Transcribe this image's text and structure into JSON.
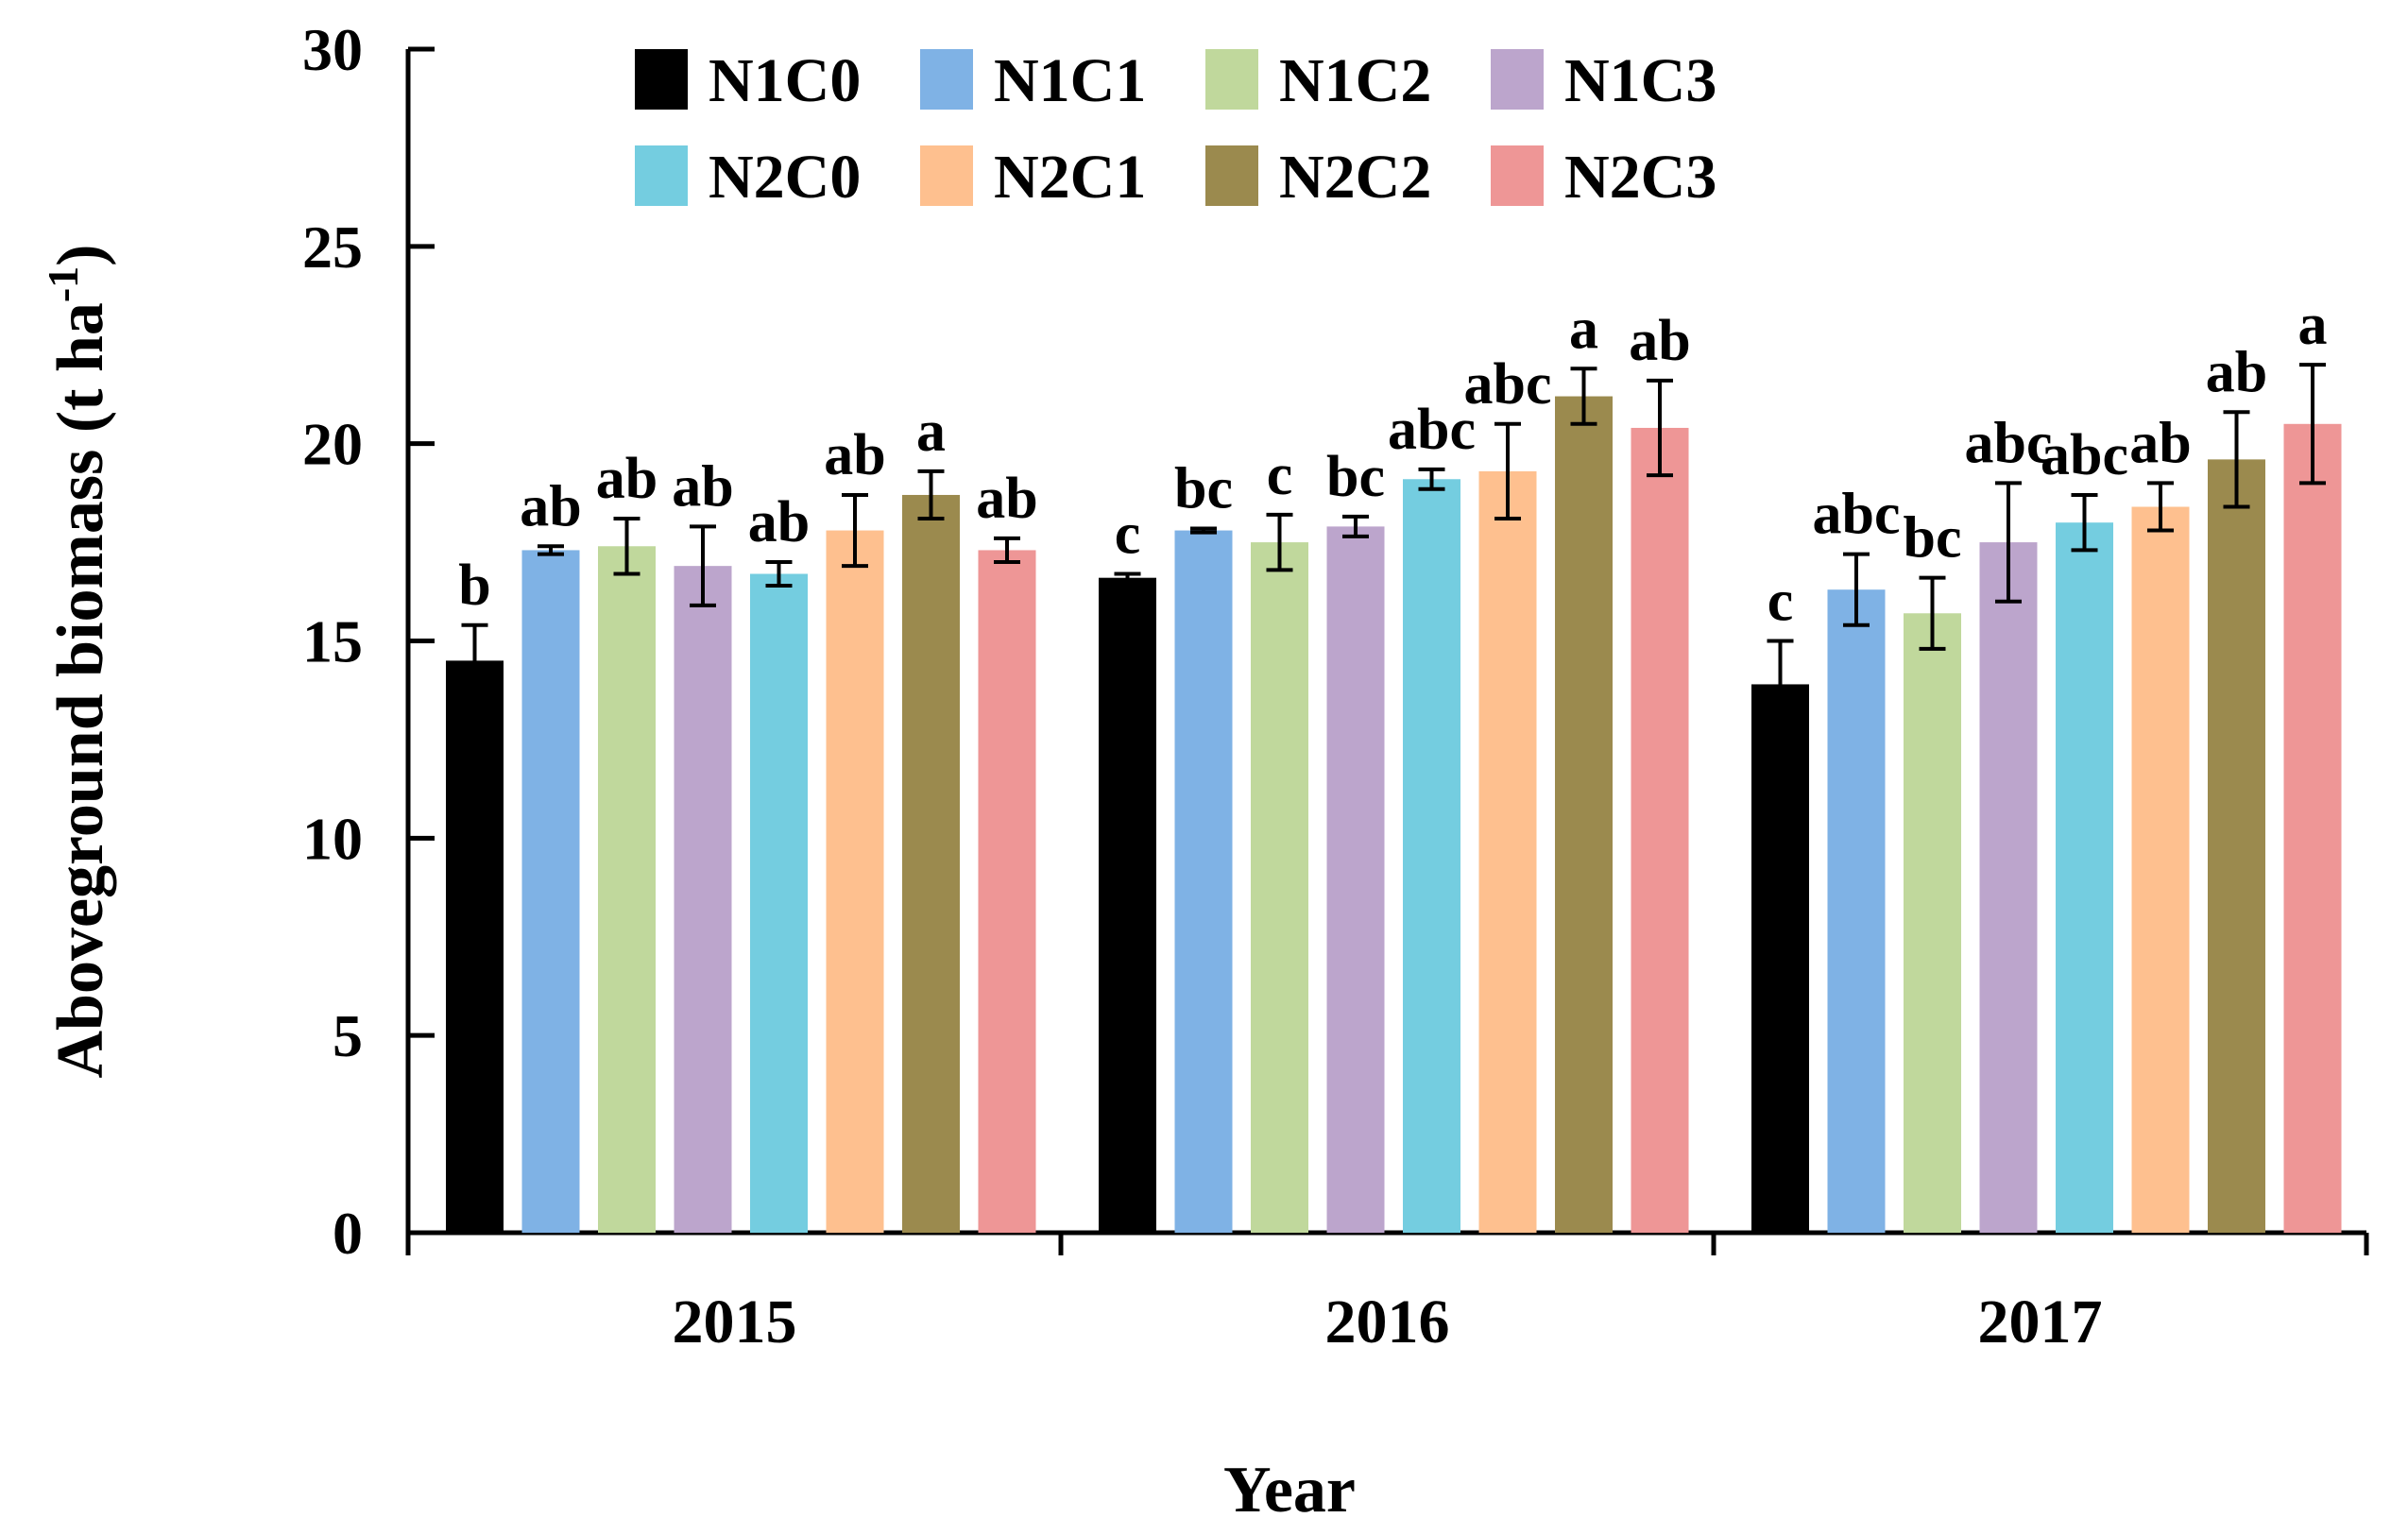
{
  "chart_data": {
    "type": "bar",
    "title": "",
    "xlabel": "Year",
    "ylabel": "Aboveground biomass (t ha",
    "ylabel_superscript": "-1",
    "ylabel_close": ")",
    "ylim": [
      0,
      30
    ],
    "yticks": [
      0,
      5,
      10,
      15,
      20,
      25,
      30
    ],
    "grid": false,
    "legend_position": "top",
    "categories": [
      "2015",
      "2016",
      "2017"
    ],
    "series": [
      {
        "name": "N1C0",
        "color": "#000000",
        "values": [
          14.5,
          16.6,
          13.9
        ],
        "errors": [
          0.9,
          0.1,
          1.1
        ],
        "labels": [
          "b",
          "c",
          "c"
        ]
      },
      {
        "name": "N1C1",
        "color": "#7fb2e5",
        "values": [
          17.3,
          17.8,
          16.3
        ],
        "errors": [
          0.1,
          0.05,
          0.9
        ],
        "labels": [
          "ab",
          "bc",
          "abc"
        ]
      },
      {
        "name": "N1C2",
        "color": "#c0d89c",
        "values": [
          17.4,
          17.5,
          15.7
        ],
        "errors": [
          0.7,
          0.7,
          0.9
        ],
        "labels": [
          "ab",
          "c",
          "bc"
        ]
      },
      {
        "name": "N1C3",
        "color": "#bca5cc",
        "values": [
          16.9,
          17.9,
          17.5
        ],
        "errors": [
          1.0,
          0.25,
          1.5
        ],
        "labels": [
          "ab",
          "bc",
          "abc"
        ]
      },
      {
        "name": "N2C0",
        "color": "#74cde0",
        "values": [
          16.7,
          19.1,
          18.0
        ],
        "errors": [
          0.3,
          0.25,
          0.7
        ],
        "labels": [
          "ab",
          "abc",
          "abc"
        ]
      },
      {
        "name": "N2C1",
        "color": "#fec08f",
        "values": [
          17.8,
          19.3,
          18.4
        ],
        "errors": [
          0.9,
          1.2,
          0.6
        ],
        "labels": [
          "ab",
          "abc",
          "ab"
        ]
      },
      {
        "name": "N2C2",
        "color": "#9b8a4e",
        "values": [
          18.7,
          21.2,
          19.6
        ],
        "errors": [
          0.6,
          0.7,
          1.2
        ],
        "labels": [
          "a",
          "a",
          "ab"
        ]
      },
      {
        "name": "N2C3",
        "color": "#ee9696",
        "values": [
          17.3,
          20.4,
          20.5
        ],
        "errors": [
          0.3,
          1.2,
          1.5
        ],
        "labels": [
          "ab",
          "ab",
          "a"
        ]
      }
    ]
  }
}
